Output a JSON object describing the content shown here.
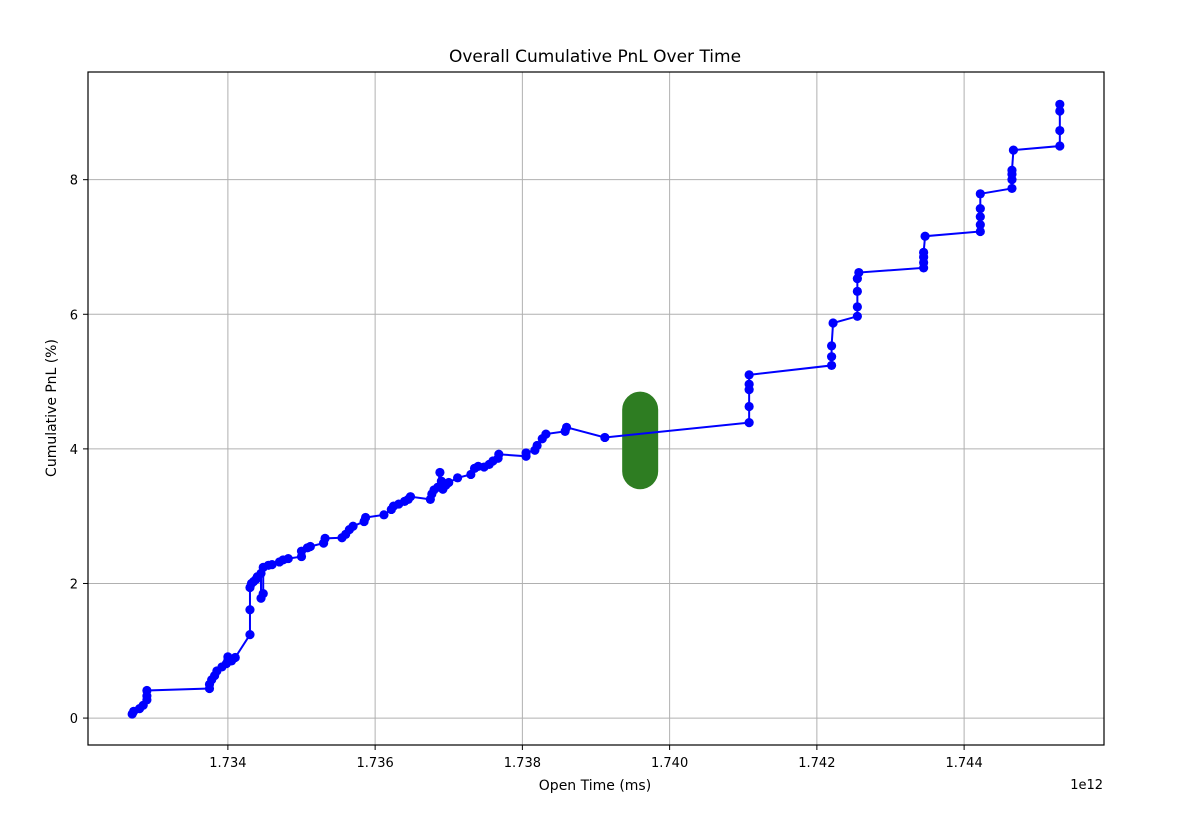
{
  "chart_data": {
    "type": "line",
    "title": "Overall Cumulative PnL Over Time",
    "xlabel": "Open Time (ms)",
    "ylabel": "Cumulative PnL (%)",
    "x_offset_label": "1e12",
    "xlim": [
      1.7321,
      1.7459
    ],
    "ylim": [
      -0.4,
      9.6
    ],
    "x_ticks": [
      1.734,
      1.736,
      1.738,
      1.74,
      1.742,
      1.744
    ],
    "x_tick_labels": [
      "1.734",
      "1.736",
      "1.738",
      "1.740",
      "1.742",
      "1.744"
    ],
    "y_ticks": [
      0,
      2,
      4,
      6,
      8
    ],
    "y_tick_labels": [
      "0",
      "2",
      "4",
      "6",
      "8"
    ],
    "grid": true,
    "line_color": "#0000ff",
    "marker_color": "#0000ff",
    "highlight_color": "#2e7d22",
    "highlight": {
      "x": 1.7396,
      "y_range": [
        3.4,
        4.85
      ]
    },
    "series": [
      {
        "points": [
          [
            1.7327,
            0.06
          ],
          [
            1.73272,
            0.1
          ],
          [
            1.7328,
            0.14
          ],
          [
            1.73285,
            0.19
          ],
          [
            1.7329,
            0.27
          ],
          [
            1.7329,
            0.33
          ],
          [
            1.7329,
            0.41
          ],
          [
            1.73375,
            0.44
          ],
          [
            1.73375,
            0.5
          ],
          [
            1.73378,
            0.57
          ],
          [
            1.73382,
            0.63
          ],
          [
            1.73385,
            0.7
          ],
          [
            1.73392,
            0.76
          ],
          [
            1.73398,
            0.81
          ],
          [
            1.734,
            0.86
          ],
          [
            1.734,
            0.91
          ],
          [
            1.73405,
            0.85
          ],
          [
            1.7341,
            0.9
          ],
          [
            1.7343,
            1.24
          ],
          [
            1.7343,
            1.61
          ],
          [
            1.7343,
            1.94
          ],
          [
            1.73432,
            2.0
          ],
          [
            1.73435,
            2.03
          ],
          [
            1.73438,
            2.06
          ],
          [
            1.7344,
            2.1
          ],
          [
            1.73445,
            2.15
          ],
          [
            1.73445,
            1.78
          ],
          [
            1.73448,
            1.85
          ],
          [
            1.73448,
            2.24
          ],
          [
            1.73455,
            2.27
          ],
          [
            1.7346,
            2.28
          ],
          [
            1.7347,
            2.32
          ],
          [
            1.73475,
            2.35
          ],
          [
            1.73482,
            2.37
          ],
          [
            1.735,
            2.4
          ],
          [
            1.735,
            2.48
          ],
          [
            1.73508,
            2.53
          ],
          [
            1.73512,
            2.55
          ],
          [
            1.7353,
            2.6
          ],
          [
            1.73532,
            2.67
          ],
          [
            1.73555,
            2.68
          ],
          [
            1.7356,
            2.73
          ],
          [
            1.73565,
            2.8
          ],
          [
            1.7357,
            2.85
          ],
          [
            1.73585,
            2.92
          ],
          [
            1.73587,
            2.98
          ],
          [
            1.73612,
            3.02
          ],
          [
            1.73622,
            3.1
          ],
          [
            1.73625,
            3.15
          ],
          [
            1.73632,
            3.18
          ],
          [
            1.7364,
            3.22
          ],
          [
            1.73645,
            3.25
          ],
          [
            1.73648,
            3.29
          ],
          [
            1.73675,
            3.25
          ],
          [
            1.73677,
            3.33
          ],
          [
            1.7368,
            3.39
          ],
          [
            1.73685,
            3.43
          ],
          [
            1.73688,
            3.65
          ],
          [
            1.7369,
            3.52
          ],
          [
            1.73692,
            3.4
          ],
          [
            1.73696,
            3.46
          ],
          [
            1.737,
            3.5
          ],
          [
            1.73712,
            3.57
          ],
          [
            1.7373,
            3.62
          ],
          [
            1.73735,
            3.71
          ],
          [
            1.7374,
            3.74
          ],
          [
            1.73748,
            3.73
          ],
          [
            1.73755,
            3.77
          ],
          [
            1.7376,
            3.82
          ],
          [
            1.73767,
            3.86
          ],
          [
            1.73768,
            3.92
          ],
          [
            1.73805,
            3.89
          ],
          [
            1.73805,
            3.94
          ],
          [
            1.73817,
            3.98
          ],
          [
            1.7382,
            4.05
          ],
          [
            1.73827,
            4.15
          ],
          [
            1.73832,
            4.22
          ],
          [
            1.73858,
            4.26
          ],
          [
            1.7386,
            4.32
          ],
          [
            1.73912,
            4.17
          ],
          [
            1.74108,
            4.39
          ],
          [
            1.74108,
            4.63
          ],
          [
            1.74108,
            4.88
          ],
          [
            1.74108,
            4.96
          ],
          [
            1.74108,
            5.1
          ],
          [
            1.7422,
            5.24
          ],
          [
            1.7422,
            5.37
          ],
          [
            1.7422,
            5.53
          ],
          [
            1.74222,
            5.87
          ],
          [
            1.74255,
            5.97
          ],
          [
            1.74255,
            6.11
          ],
          [
            1.74255,
            6.34
          ],
          [
            1.74255,
            6.53
          ],
          [
            1.74257,
            6.62
          ],
          [
            1.74345,
            6.69
          ],
          [
            1.74345,
            6.77
          ],
          [
            1.74345,
            6.85
          ],
          [
            1.74345,
            6.92
          ],
          [
            1.74347,
            7.16
          ],
          [
            1.74422,
            7.23
          ],
          [
            1.74422,
            7.33
          ],
          [
            1.74422,
            7.45
          ],
          [
            1.74422,
            7.57
          ],
          [
            1.74422,
            7.79
          ],
          [
            1.74465,
            7.87
          ],
          [
            1.74465,
            8.0
          ],
          [
            1.74465,
            8.08
          ],
          [
            1.74465,
            8.14
          ],
          [
            1.74467,
            8.44
          ],
          [
            1.7453,
            8.5
          ],
          [
            1.7453,
            8.73
          ],
          [
            1.7453,
            9.02
          ],
          [
            1.7453,
            9.12
          ]
        ]
      }
    ]
  }
}
